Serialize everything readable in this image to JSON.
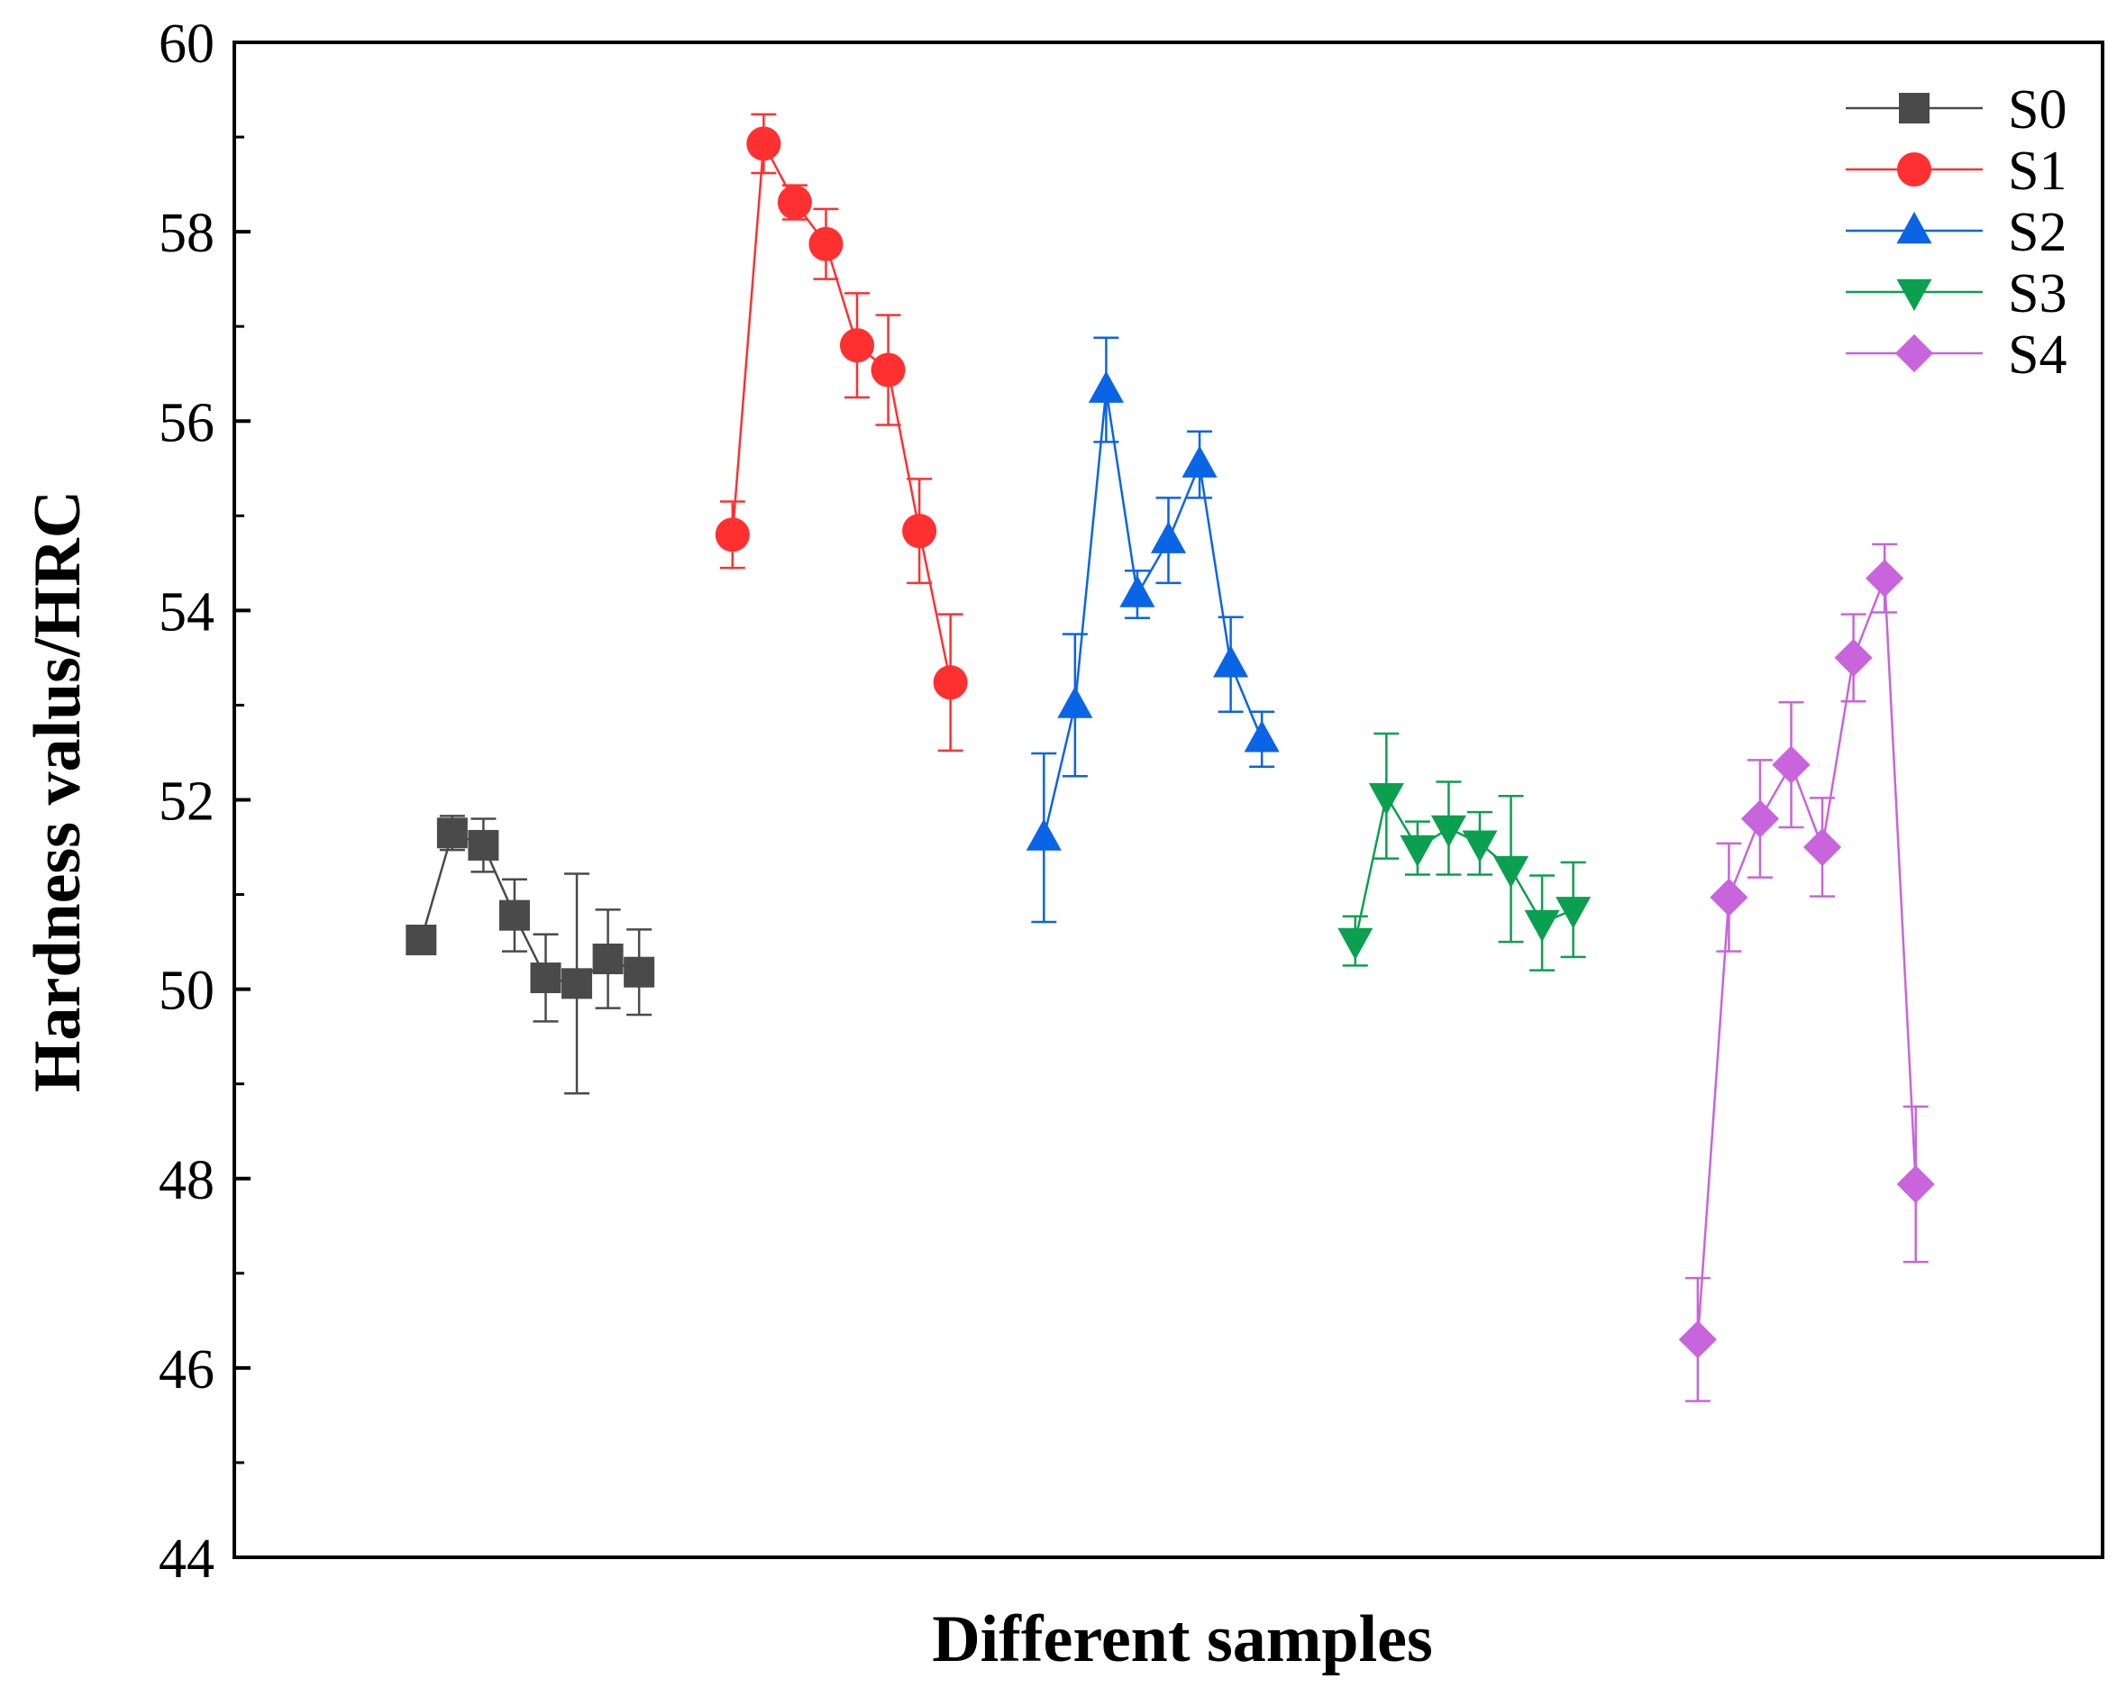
{
  "chart_data": {
    "type": "scatter",
    "title": "",
    "xlabel": "Different samples",
    "ylabel": "Hardness valus/HRC",
    "ylim": [
      44,
      60
    ],
    "yticks": [
      44,
      46,
      48,
      50,
      52,
      54,
      56,
      58,
      60
    ],
    "y_minor_step": 1,
    "xlim": [
      0,
      60
    ],
    "grid": false,
    "legend_position": "top-right",
    "series": [
      {
        "name": "S0",
        "color": "#4a4a4a",
        "marker": "square",
        "x": [
          6,
          7,
          8,
          9,
          10,
          11,
          12,
          13
        ],
        "values": [
          50.52,
          51.65,
          51.52,
          50.78,
          50.12,
          50.06,
          50.32,
          50.18
        ],
        "errors": [
          0.0,
          0.18,
          0.28,
          0.38,
          0.46,
          1.16,
          0.52,
          0.45
        ]
      },
      {
        "name": "S1",
        "color": "#ff3030",
        "marker": "circle",
        "x": [
          16,
          17,
          18,
          19,
          20,
          21,
          22,
          23
        ],
        "values": [
          54.8,
          58.93,
          58.31,
          57.87,
          56.8,
          56.54,
          54.84,
          53.24
        ],
        "errors": [
          0.35,
          0.31,
          0.18,
          0.37,
          0.55,
          0.58,
          0.55,
          0.72
        ]
      },
      {
        "name": "S2",
        "color": "#0a64e6",
        "marker": "triangle-up",
        "x": [
          26,
          27,
          28,
          29,
          30,
          31,
          32,
          33
        ],
        "values": [
          51.6,
          53.0,
          56.33,
          54.17,
          54.74,
          55.54,
          53.43,
          52.64
        ],
        "errors": [
          0.89,
          0.75,
          0.55,
          0.25,
          0.45,
          0.35,
          0.5,
          0.29
        ]
      },
      {
        "name": "S3",
        "color": "#0aa050",
        "marker": "triangle-down",
        "x": [
          36,
          37,
          38,
          39,
          40,
          41,
          42,
          43
        ],
        "values": [
          50.51,
          52.04,
          51.49,
          51.7,
          51.54,
          51.27,
          50.7,
          50.84
        ],
        "errors": [
          0.26,
          0.66,
          0.28,
          0.49,
          0.33,
          0.77,
          0.5,
          0.5
        ]
      },
      {
        "name": "S4",
        "color": "#c864dc",
        "marker": "diamond",
        "x": [
          47,
          48,
          49,
          50,
          51,
          52,
          53,
          54
        ],
        "values": [
          46.3,
          50.97,
          51.8,
          52.37,
          51.5,
          53.5,
          54.34,
          47.94
        ],
        "errors": [
          0.65,
          0.57,
          0.62,
          0.66,
          0.52,
          0.46,
          0.36,
          0.82
        ]
      }
    ]
  }
}
